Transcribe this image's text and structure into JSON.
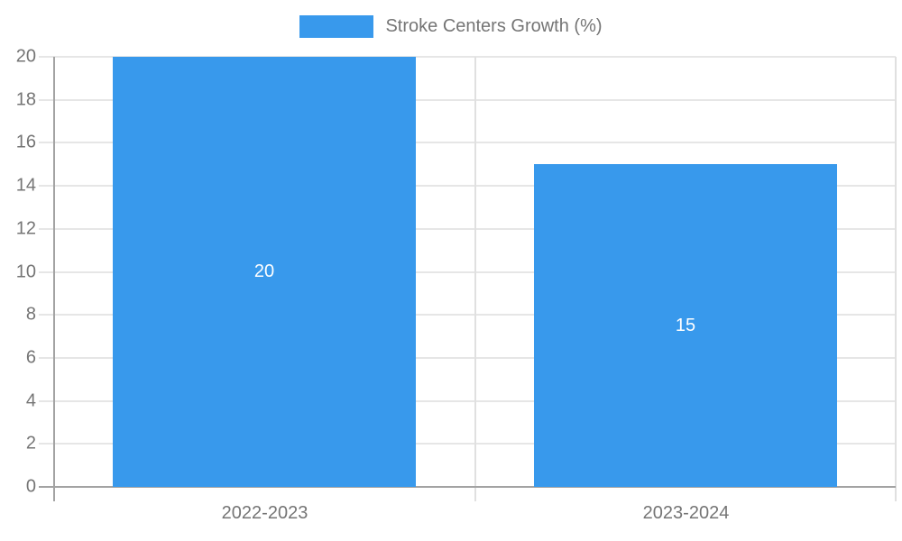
{
  "chart_data": {
    "type": "bar",
    "title": "",
    "legend_label": "Stroke Centers Growth (%)",
    "legend_position": "top",
    "categories": [
      "2022-2023",
      "2023-2024"
    ],
    "series": [
      {
        "name": "Stroke Centers Growth (%)",
        "values": [
          20,
          15
        ]
      }
    ],
    "data_labels": [
      "20",
      "15"
    ],
    "xlabel": "",
    "ylabel": "",
    "ylim": [
      0,
      20
    ],
    "ytick_step": 2,
    "yticks": [
      0,
      2,
      4,
      6,
      8,
      10,
      12,
      14,
      16,
      18,
      20
    ],
    "grid": "on",
    "colors": {
      "bar": "#3899EC",
      "data_label": "#FFFFFF",
      "axis_text": "#757575",
      "legend_text": "#757575",
      "gridline": "#E6E6E6",
      "category_line": "#E0E0E0",
      "axis_line": "#A3A3A3",
      "background": "#FFFFFF"
    }
  }
}
